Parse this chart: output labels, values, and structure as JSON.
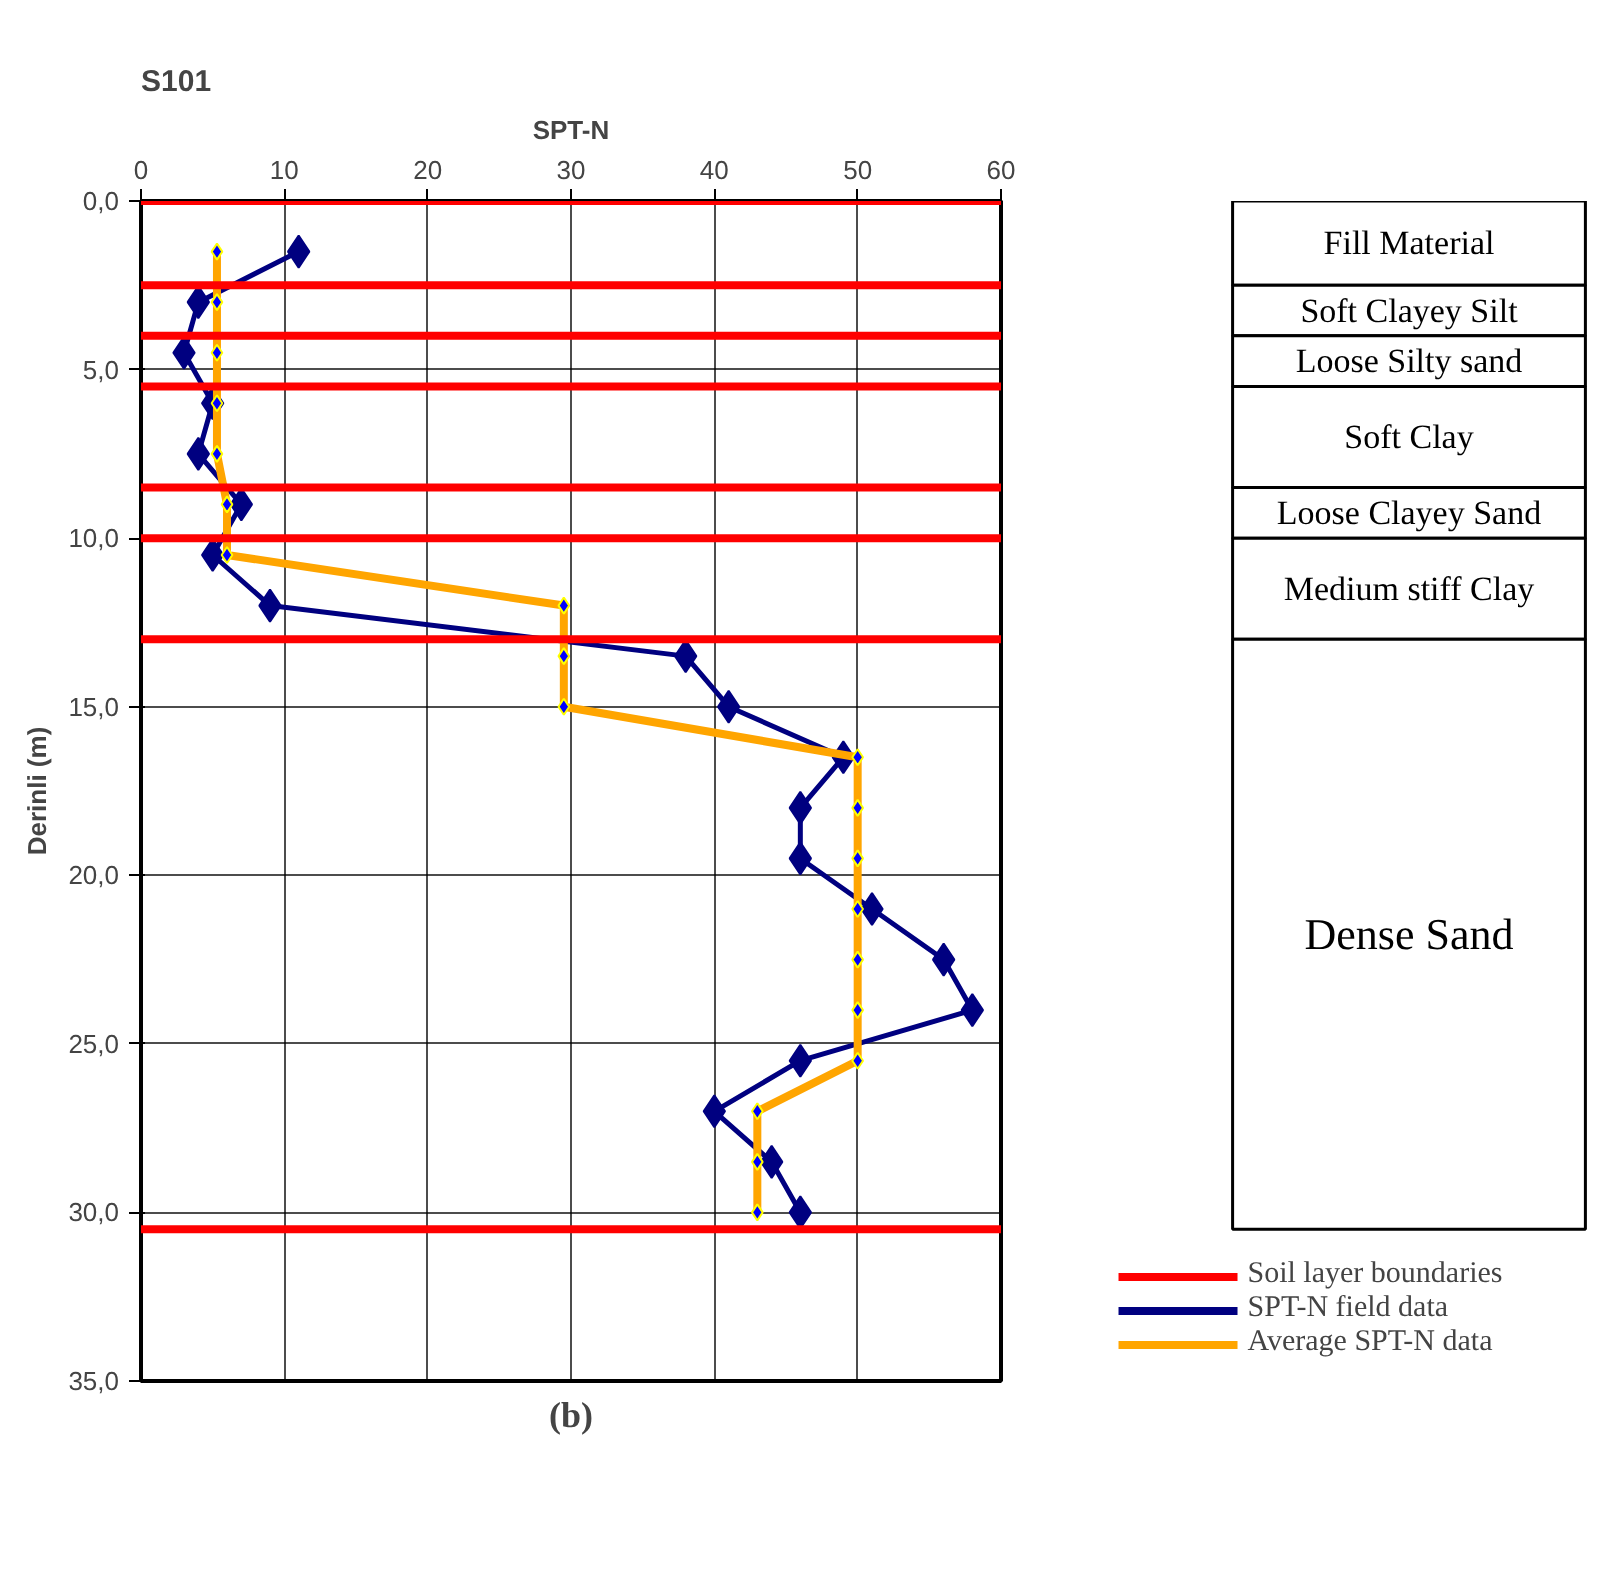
{
  "chart_data": {
    "type": "line",
    "title": "S101",
    "xlabel": "SPT-N",
    "ylabel": "Derinli (m)",
    "xlim": [
      0,
      60
    ],
    "xticks": [
      0,
      10,
      20,
      30,
      40,
      50,
      60
    ],
    "ylim": [
      35,
      0
    ],
    "yticks": [
      {
        "value": 0,
        "label": "0,0"
      },
      {
        "value": 5,
        "label": "5,0"
      },
      {
        "value": 10,
        "label": "10,0"
      },
      {
        "value": 15,
        "label": "15,0"
      },
      {
        "value": 20,
        "label": "20,0"
      },
      {
        "value": 25,
        "label": "25,0"
      },
      {
        "value": 30,
        "label": "30,0"
      },
      {
        "value": 35,
        "label": "35,0"
      }
    ],
    "grid": true,
    "legend": "bottom right",
    "marker": "diamond",
    "line_style": "solid",
    "series": [
      {
        "name": "SPT-N field data",
        "color": "#000080",
        "x": [
          11,
          4,
          3,
          5,
          4,
          7,
          5,
          9,
          38,
          41,
          49,
          46,
          46,
          51,
          56,
          58,
          46,
          40,
          44,
          46
        ],
        "values": [
          1.5,
          3,
          4.5,
          6,
          7.5,
          9,
          10.5,
          12,
          13.5,
          15,
          16.5,
          18,
          19.5,
          21,
          22.5,
          24,
          25.5,
          27,
          28.5,
          30
        ]
      },
      {
        "name": "Average SPT-N data",
        "color": "#ffa500",
        "x": [
          5.3,
          5.3,
          5.3,
          5.3,
          5.3,
          6,
          6,
          29.5,
          29.5,
          29.5,
          50,
          50,
          50,
          50,
          50,
          50,
          50,
          43,
          43,
          43
        ],
        "values": [
          1.5,
          3,
          4.5,
          6,
          7.5,
          9,
          10.5,
          12,
          13.5,
          15,
          16.5,
          18,
          19.5,
          21,
          22.5,
          24,
          25.5,
          27,
          28.5,
          30
        ]
      }
    ],
    "ref_lines": [
      {
        "axis": "y",
        "value": 0,
        "label": "Soil layer boundaries",
        "color": "#ff0000"
      },
      {
        "axis": "y",
        "value": 2.5,
        "color": "#ff0000"
      },
      {
        "axis": "y",
        "value": 4,
        "color": "#ff0000"
      },
      {
        "axis": "y",
        "value": 5.5,
        "color": "#ff0000"
      },
      {
        "axis": "y",
        "value": 8.5,
        "color": "#ff0000"
      },
      {
        "axis": "y",
        "value": 10,
        "color": "#ff0000"
      },
      {
        "axis": "y",
        "value": 13,
        "color": "#ff0000"
      },
      {
        "axis": "y",
        "value": 30.5,
        "color": "#ff0000"
      }
    ],
    "annotations": [
      "Fill Material",
      "Soft Clayey Silt",
      "Loose Silty sand",
      "Soft Clay",
      "Loose Clayey Sand",
      "Medium stiff Clay",
      "Dense Sand",
      "(b)"
    ]
  }
}
